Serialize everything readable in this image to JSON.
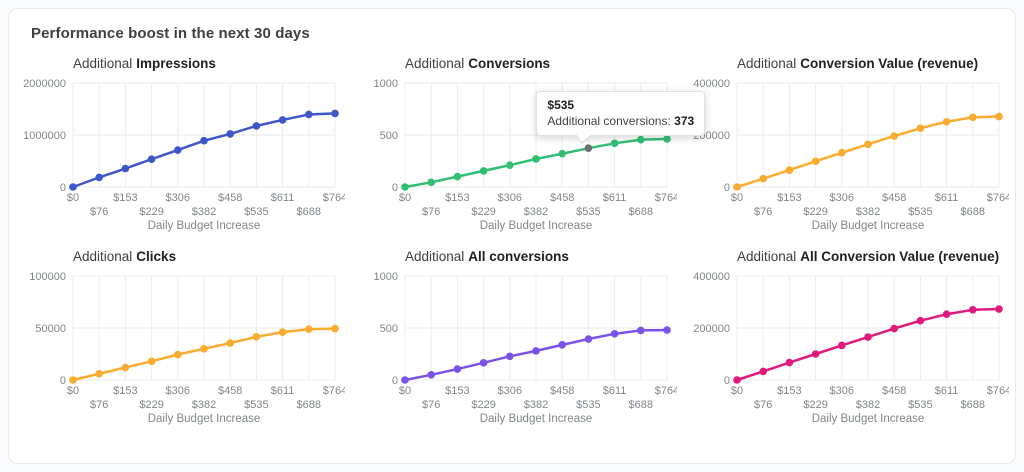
{
  "card": {
    "title": "Performance boost in the next 30 days"
  },
  "tooltip": {
    "budget": "$535",
    "label": "Additional conversions:",
    "value": "373",
    "chart": 1,
    "point_index": 7,
    "highlight_color": "#6f6f6f"
  },
  "chart_data": [
    {
      "type": "line",
      "title_prefix": "Additional",
      "title": "Impressions",
      "color": "#3d56cc",
      "ylim": [
        0,
        2000000
      ],
      "yticks": [
        0,
        1000000,
        2000000
      ],
      "xlabel": "Daily Budget Increase",
      "categories": [
        "$0",
        "$76",
        "$153",
        "$229",
        "$306",
        "$382",
        "$458",
        "$535",
        "$611",
        "$688",
        "$764"
      ],
      "values": [
        0,
        185000,
        355000,
        535000,
        710000,
        890000,
        1020000,
        1175000,
        1290000,
        1395000,
        1415000
      ],
      "grid": true,
      "legend": "none"
    },
    {
      "type": "line",
      "title_prefix": "Additional",
      "title": "Conversions",
      "color": "#2fbf71",
      "ylim": [
        0,
        1000
      ],
      "yticks": [
        0,
        500,
        1000
      ],
      "xlabel": "Daily Budget Increase",
      "categories": [
        "$0",
        "$76",
        "$153",
        "$229",
        "$306",
        "$382",
        "$458",
        "$535",
        "$611",
        "$688",
        "$764"
      ],
      "values": [
        0,
        45,
        100,
        155,
        210,
        270,
        320,
        373,
        420,
        455,
        462
      ],
      "grid": true,
      "legend": "none"
    },
    {
      "type": "line",
      "title_prefix": "Additional",
      "title": "Conversion Value (revenue)",
      "color": "#fbab2e",
      "ylim": [
        0,
        400000
      ],
      "yticks": [
        0,
        200000,
        400000
      ],
      "xlabel": "Daily Budget Increase",
      "categories": [
        "$0",
        "$76",
        "$153",
        "$229",
        "$306",
        "$382",
        "$458",
        "$535",
        "$611",
        "$688",
        "$764"
      ],
      "values": [
        0,
        32000,
        65000,
        99000,
        132000,
        164000,
        196000,
        226000,
        251000,
        268000,
        271000
      ],
      "grid": true,
      "legend": "none"
    },
    {
      "type": "line",
      "title_prefix": "Additional",
      "title": "Clicks",
      "color": "#fbab2e",
      "ylim": [
        0,
        100000
      ],
      "yticks": [
        0,
        50000,
        100000
      ],
      "xlabel": "Daily Budget Increase",
      "categories": [
        "$0",
        "$76",
        "$153",
        "$229",
        "$306",
        "$382",
        "$458",
        "$535",
        "$611",
        "$688",
        "$764"
      ],
      "values": [
        0,
        6000,
        12000,
        18000,
        24500,
        30000,
        35500,
        41500,
        46000,
        48800,
        49500
      ],
      "grid": true,
      "legend": "none"
    },
    {
      "type": "line",
      "title_prefix": "Additional",
      "title": "All conversions",
      "color": "#7b52e8",
      "ylim": [
        0,
        1000
      ],
      "yticks": [
        0,
        500,
        1000
      ],
      "xlabel": "Daily Budget Increase",
      "categories": [
        "$0",
        "$76",
        "$153",
        "$229",
        "$306",
        "$382",
        "$458",
        "$535",
        "$611",
        "$688",
        "$764"
      ],
      "values": [
        0,
        50,
        105,
        165,
        228,
        280,
        338,
        394,
        444,
        477,
        480
      ],
      "grid": true,
      "legend": "none"
    },
    {
      "type": "line",
      "title_prefix": "Additional",
      "title": "All Conversion Value (revenue)",
      "color": "#e0197d",
      "ylim": [
        0,
        400000
      ],
      "yticks": [
        0,
        200000,
        400000
      ],
      "xlabel": "Daily Budget Increase",
      "categories": [
        "$0",
        "$76",
        "$153",
        "$229",
        "$306",
        "$382",
        "$458",
        "$535",
        "$611",
        "$688",
        "$764"
      ],
      "values": [
        0,
        33000,
        67000,
        100000,
        133000,
        165000,
        198000,
        228000,
        253000,
        270000,
        273000
      ],
      "grid": true,
      "legend": "none"
    }
  ]
}
